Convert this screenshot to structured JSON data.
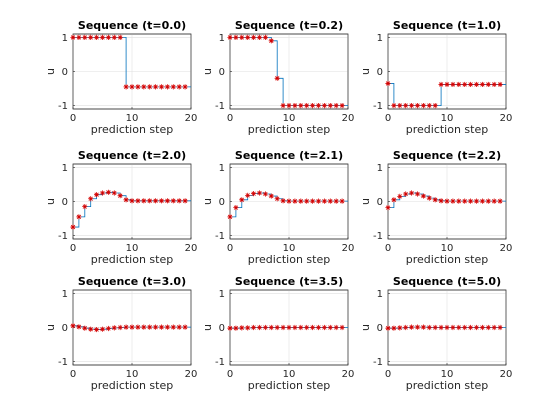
{
  "colors": {
    "line": "#0072bd",
    "marker": "#d40000",
    "grid": "#dfdfdf",
    "axis": "#262626"
  },
  "chart_data": [
    {
      "type": "line",
      "title": "Sequence (t=0.0)",
      "xlabel": "prediction step",
      "ylabel": "u",
      "xlim": [
        0,
        20
      ],
      "ylim": [
        -1.1,
        1.1
      ],
      "xticks": [
        "0",
        "10",
        "20"
      ],
      "yticks": [
        "-1",
        "0",
        "1"
      ],
      "grid": true,
      "series": [
        {
          "marker": "*",
          "step": true,
          "x": [
            0,
            1,
            2,
            3,
            4,
            5,
            6,
            7,
            8,
            9,
            10,
            11,
            12,
            13,
            14,
            15,
            16,
            17,
            18,
            19
          ],
          "values": [
            1,
            1,
            1,
            1,
            1,
            1,
            1,
            1,
            1,
            -0.45,
            -0.45,
            -0.45,
            -0.45,
            -0.45,
            -0.45,
            -0.45,
            -0.45,
            -0.45,
            -0.45,
            -0.45
          ]
        }
      ]
    },
    {
      "type": "line",
      "title": "Sequence (t=0.2)",
      "xlabel": "prediction step",
      "ylabel": "u",
      "xlim": [
        0,
        20
      ],
      "ylim": [
        -1.1,
        1.1
      ],
      "xticks": [
        "0",
        "10",
        "20"
      ],
      "yticks": [
        "-1",
        "0",
        "1"
      ],
      "grid": true,
      "series": [
        {
          "marker": "*",
          "step": true,
          "x": [
            0,
            1,
            2,
            3,
            4,
            5,
            6,
            7,
            8,
            9,
            10,
            11,
            12,
            13,
            14,
            15,
            16,
            17,
            18,
            19
          ],
          "values": [
            1,
            1,
            1,
            1,
            1,
            1,
            1,
            0.9,
            -0.2,
            -1,
            -1,
            -1,
            -1,
            -1,
            -1,
            -1,
            -1,
            -1,
            -1,
            -1
          ]
        }
      ]
    },
    {
      "type": "line",
      "title": "Sequence (t=1.0)",
      "xlabel": "prediction step",
      "ylabel": "u",
      "xlim": [
        0,
        20
      ],
      "ylim": [
        -1.1,
        1.1
      ],
      "xticks": [
        "0",
        "10",
        "20"
      ],
      "yticks": [
        "-1",
        "0",
        "1"
      ],
      "grid": true,
      "series": [
        {
          "marker": "*",
          "step": true,
          "x": [
            0,
            1,
            2,
            3,
            4,
            5,
            6,
            7,
            8,
            9,
            10,
            11,
            12,
            13,
            14,
            15,
            16,
            17,
            18,
            19
          ],
          "values": [
            -0.35,
            -1,
            -1,
            -1,
            -1,
            -1,
            -1,
            -1,
            -1,
            -0.38,
            -0.38,
            -0.38,
            -0.38,
            -0.38,
            -0.38,
            -0.38,
            -0.38,
            -0.38,
            -0.38,
            -0.38
          ]
        }
      ]
    },
    {
      "type": "line",
      "title": "Sequence (t=2.0)",
      "xlabel": "prediction step",
      "ylabel": "u",
      "xlim": [
        0,
        20
      ],
      "ylim": [
        -1.1,
        1.1
      ],
      "xticks": [
        "0",
        "10",
        "20"
      ],
      "yticks": [
        "-1",
        "0",
        "1"
      ],
      "grid": true,
      "series": [
        {
          "marker": "*",
          "step": true,
          "x": [
            0,
            1,
            2,
            3,
            4,
            5,
            6,
            7,
            8,
            9,
            10,
            11,
            12,
            13,
            14,
            15,
            16,
            17,
            18,
            19
          ],
          "values": [
            -0.75,
            -0.45,
            -0.15,
            0.08,
            0.2,
            0.25,
            0.27,
            0.25,
            0.17,
            0.05,
            0.02,
            0.02,
            0.02,
            0.02,
            0.02,
            0.02,
            0.02,
            0.02,
            0.02,
            0.02
          ]
        }
      ]
    },
    {
      "type": "line",
      "title": "Sequence (t=2.1)",
      "xlabel": "prediction step",
      "ylabel": "u",
      "xlim": [
        0,
        20
      ],
      "ylim": [
        -1.1,
        1.1
      ],
      "xticks": [
        "0",
        "10",
        "20"
      ],
      "yticks": [
        "-1",
        "0",
        "1"
      ],
      "grid": true,
      "series": [
        {
          "marker": "*",
          "step": true,
          "x": [
            0,
            1,
            2,
            3,
            4,
            5,
            6,
            7,
            8,
            9,
            10,
            11,
            12,
            13,
            14,
            15,
            16,
            17,
            18,
            19
          ],
          "values": [
            -0.45,
            -0.18,
            0.05,
            0.18,
            0.23,
            0.25,
            0.22,
            0.16,
            0.08,
            0.02,
            0.01,
            0.01,
            0.01,
            0.01,
            0.01,
            0.01,
            0.01,
            0.01,
            0.01,
            0.01
          ]
        }
      ]
    },
    {
      "type": "line",
      "title": "Sequence (t=2.2)",
      "xlabel": "prediction step",
      "ylabel": "u",
      "xlim": [
        0,
        20
      ],
      "ylim": [
        -1.1,
        1.1
      ],
      "xticks": [
        "0",
        "10",
        "20"
      ],
      "yticks": [
        "-1",
        "0",
        "1"
      ],
      "grid": true,
      "series": [
        {
          "marker": "*",
          "step": true,
          "x": [
            0,
            1,
            2,
            3,
            4,
            5,
            6,
            7,
            8,
            9,
            10,
            11,
            12,
            13,
            14,
            15,
            16,
            17,
            18,
            19
          ],
          "values": [
            -0.18,
            0.05,
            0.15,
            0.22,
            0.25,
            0.22,
            0.16,
            0.1,
            0.05,
            0.02,
            0.01,
            0.01,
            0.01,
            0.01,
            0.01,
            0.01,
            0.01,
            0.01,
            0.01,
            0.01
          ]
        }
      ]
    },
    {
      "type": "line",
      "title": "Sequence (t=3.0)",
      "xlabel": "prediction step",
      "ylabel": "u",
      "xlim": [
        0,
        20
      ],
      "ylim": [
        -1.1,
        1.1
      ],
      "xticks": [
        "0",
        "10",
        "20"
      ],
      "yticks": [
        "-1",
        "0",
        "1"
      ],
      "grid": true,
      "series": [
        {
          "marker": "*",
          "step": true,
          "x": [
            0,
            1,
            2,
            3,
            4,
            5,
            6,
            7,
            8,
            9,
            10,
            11,
            12,
            13,
            14,
            15,
            16,
            17,
            18,
            19
          ],
          "values": [
            0.05,
            0.02,
            -0.02,
            -0.05,
            -0.06,
            -0.05,
            -0.03,
            -0.01,
            0,
            0.01,
            0.01,
            0.01,
            0.01,
            0.01,
            0.01,
            0.01,
            0.01,
            0.01,
            0.01,
            0.01
          ]
        }
      ]
    },
    {
      "type": "line",
      "title": "Sequence (t=3.5)",
      "xlabel": "prediction step",
      "ylabel": "u",
      "xlim": [
        0,
        20
      ],
      "ylim": [
        -1.1,
        1.1
      ],
      "xticks": [
        "0",
        "10",
        "20"
      ],
      "yticks": [
        "-1",
        "0",
        "1"
      ],
      "grid": true,
      "series": [
        {
          "marker": "*",
          "step": true,
          "x": [
            0,
            1,
            2,
            3,
            4,
            5,
            6,
            7,
            8,
            9,
            10,
            11,
            12,
            13,
            14,
            15,
            16,
            17,
            18,
            19
          ],
          "values": [
            -0.02,
            -0.02,
            -0.01,
            -0.01,
            0,
            0,
            0,
            0,
            0,
            0,
            0,
            0,
            0,
            0,
            0,
            0,
            0,
            0,
            0,
            0
          ]
        }
      ]
    },
    {
      "type": "line",
      "title": "Sequence (t=5.0)",
      "xlabel": "prediction step",
      "ylabel": "u",
      "xlim": [
        0,
        20
      ],
      "ylim": [
        -1.1,
        1.1
      ],
      "xticks": [
        "0",
        "10",
        "20"
      ],
      "yticks": [
        "-1",
        "0",
        "1"
      ],
      "grid": true,
      "series": [
        {
          "marker": "*",
          "step": true,
          "x": [
            0,
            1,
            2,
            3,
            4,
            5,
            6,
            7,
            8,
            9,
            10,
            11,
            12,
            13,
            14,
            15,
            16,
            17,
            18,
            19
          ],
          "values": [
            -0.02,
            -0.02,
            -0.01,
            0,
            0.01,
            0.01,
            0.01,
            0,
            0,
            0,
            0,
            0,
            0,
            0,
            0,
            0,
            0,
            0,
            0,
            0
          ]
        }
      ]
    }
  ]
}
